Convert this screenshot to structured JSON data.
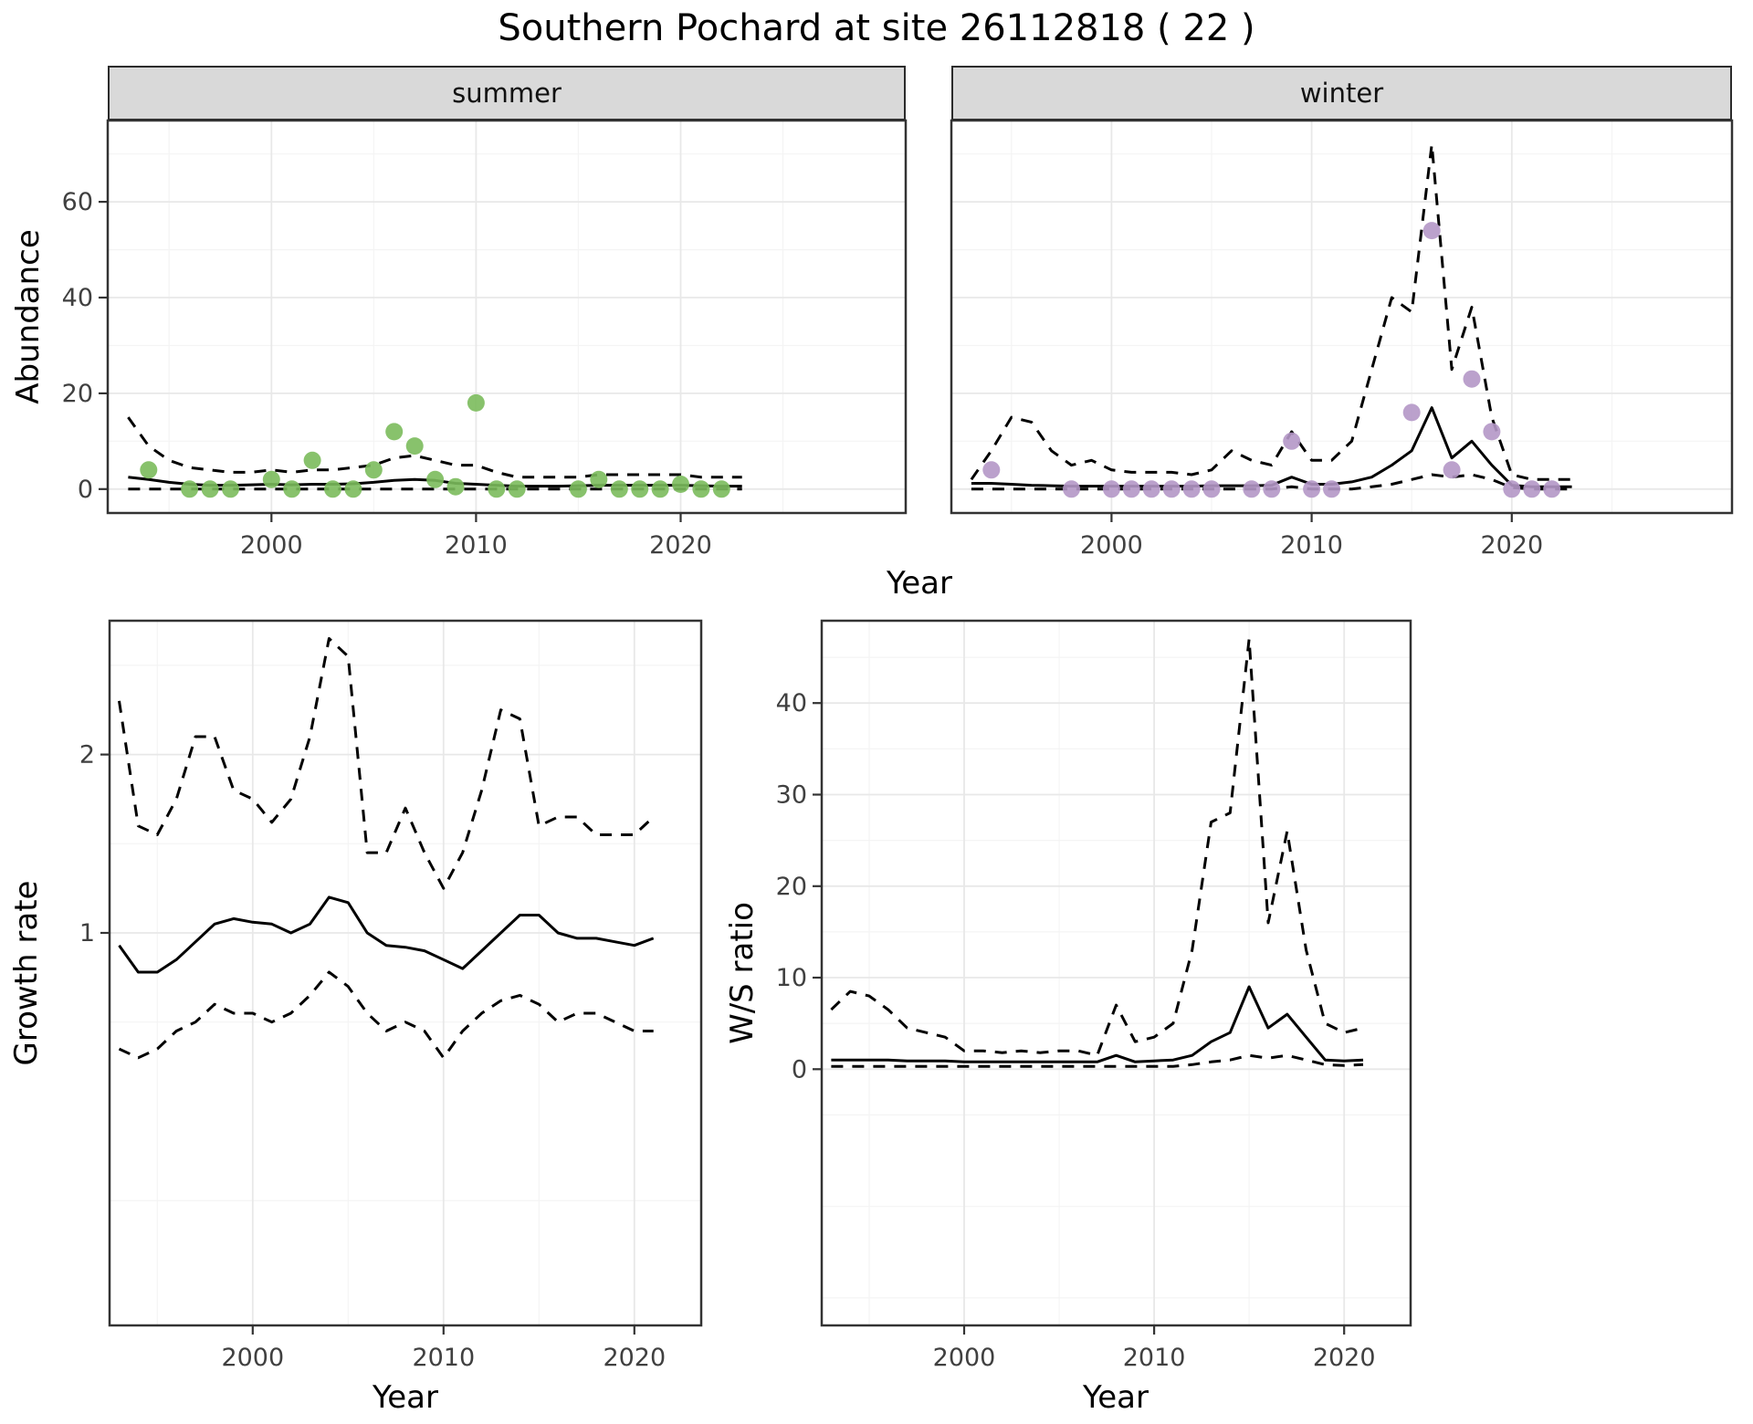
{
  "title": "Southern Pochard at site 26112818 ( 22 )",
  "facets": [
    "summer",
    "winter"
  ],
  "axes": {
    "abundance": "Abundance",
    "year": "Year",
    "growth": "Growth rate",
    "ws": "W/S ratio"
  },
  "theme": {
    "panel_bg": "#ffffff",
    "panel_border": "#333333",
    "grid_major": "#e8e8e8",
    "grid_minor": "#f4f4f4",
    "strip_bg": "#d9d9d9",
    "tick_color": "#333333",
    "line_color": "#000000",
    "point_green": "#7bbb5c",
    "point_purple": "#b497c6"
  },
  "chart_data": [
    {
      "id": "abundance-summer",
      "type": "line",
      "facet": "summer",
      "xlabel": "Year",
      "ylabel": "Abundance",
      "xlim": [
        1992,
        2031
      ],
      "ylim": [
        -5,
        77
      ],
      "xticks": [
        2000,
        2010,
        2020
      ],
      "yticks": [
        0,
        20,
        40,
        60
      ],
      "grid": true,
      "legend": "none",
      "series": [
        {
          "name": "ci-upper",
          "style": "dashed-line",
          "color": "#000000",
          "x": [
            1993,
            1994,
            1995,
            1996,
            1997,
            1998,
            1999,
            2000,
            2001,
            2002,
            2003,
            2004,
            2005,
            2006,
            2007,
            2008,
            2009,
            2010,
            2011,
            2012,
            2013,
            2014,
            2015,
            2016,
            2017,
            2018,
            2019,
            2020,
            2021,
            2022,
            2023
          ],
          "y": [
            15,
            9,
            6,
            4.5,
            4,
            3.5,
            3.5,
            4,
            3.5,
            4,
            4,
            4.5,
            5,
            6.5,
            7,
            6,
            5,
            5,
            3.5,
            2.5,
            2.5,
            2.5,
            2.5,
            3,
            3,
            3,
            3,
            3,
            2.5,
            2.5,
            2.5
          ]
        },
        {
          "name": "ci-lower",
          "style": "dashed-line",
          "color": "#000000",
          "x": [
            1993,
            1994,
            1995,
            1996,
            1997,
            1998,
            1999,
            2000,
            2001,
            2002,
            2003,
            2004,
            2005,
            2006,
            2007,
            2008,
            2009,
            2010,
            2011,
            2012,
            2013,
            2014,
            2015,
            2016,
            2017,
            2018,
            2019,
            2020,
            2021,
            2022,
            2023
          ],
          "y": [
            0,
            0,
            0,
            0,
            0,
            0,
            0,
            0,
            0,
            0,
            0,
            0,
            0,
            0,
            0,
            0,
            0,
            0,
            0,
            0,
            0,
            0,
            0,
            0,
            0,
            0,
            0,
            0,
            0,
            0,
            0
          ]
        },
        {
          "name": "model-fit",
          "style": "solid-line",
          "color": "#000000",
          "x": [
            1993,
            1994,
            1995,
            1996,
            1997,
            1998,
            1999,
            2000,
            2001,
            2002,
            2003,
            2004,
            2005,
            2006,
            2007,
            2008,
            2009,
            2010,
            2011,
            2012,
            2013,
            2014,
            2015,
            2016,
            2017,
            2018,
            2019,
            2020,
            2021,
            2022,
            2023
          ],
          "y": [
            2.5,
            2.0,
            1.4,
            1.0,
            0.8,
            0.8,
            0.9,
            1.0,
            0.9,
            1.0,
            1.0,
            1.1,
            1.4,
            1.8,
            2.0,
            1.8,
            1.2,
            1.0,
            0.8,
            0.6,
            0.6,
            0.6,
            0.7,
            0.8,
            0.8,
            0.8,
            0.8,
            0.8,
            0.7,
            0.6,
            0.6
          ]
        },
        {
          "name": "observed-count",
          "style": "points",
          "color": "#7bbb5c",
          "x": [
            1994,
            1996,
            1997,
            1998,
            2000,
            2001,
            2002,
            2003,
            2004,
            2005,
            2006,
            2007,
            2008,
            2009,
            2010,
            2011,
            2012,
            2015,
            2016,
            2017,
            2018,
            2019,
            2020,
            2021,
            2022
          ],
          "y": [
            4,
            0,
            0,
            0,
            2,
            0,
            6,
            0,
            0,
            4,
            12,
            9,
            2,
            0.5,
            18,
            0,
            0,
            0,
            2,
            0,
            0,
            0,
            1,
            0,
            0
          ]
        }
      ]
    },
    {
      "id": "abundance-winter",
      "type": "line",
      "facet": "winter",
      "xlabel": "Year",
      "ylabel": "Abundance",
      "xlim": [
        1992,
        2031
      ],
      "ylim": [
        -5,
        77
      ],
      "xticks": [
        2000,
        2010,
        2020
      ],
      "yticks": [
        0,
        20,
        40,
        60
      ],
      "grid": true,
      "legend": "none",
      "series": [
        {
          "name": "ci-upper",
          "style": "dashed-line",
          "color": "#000000",
          "x": [
            1993,
            1994,
            1995,
            1996,
            1997,
            1998,
            1999,
            2000,
            2001,
            2002,
            2003,
            2004,
            2005,
            2006,
            2007,
            2008,
            2009,
            2010,
            2011,
            2012,
            2013,
            2014,
            2015,
            2016,
            2017,
            2018,
            2019,
            2020,
            2021,
            2022,
            2023
          ],
          "y": [
            2,
            8,
            15,
            14,
            8,
            5,
            6,
            4,
            3.5,
            3.5,
            3.5,
            3,
            4,
            8,
            6,
            5,
            12,
            6,
            6,
            10,
            25,
            40,
            37,
            72,
            25,
            38,
            15,
            3,
            2,
            2,
            2
          ]
        },
        {
          "name": "ci-lower",
          "style": "dashed-line",
          "color": "#000000",
          "x": [
            1993,
            1994,
            1995,
            1996,
            1997,
            1998,
            1999,
            2000,
            2001,
            2002,
            2003,
            2004,
            2005,
            2006,
            2007,
            2008,
            2009,
            2010,
            2011,
            2012,
            2013,
            2014,
            2015,
            2016,
            2017,
            2018,
            2019,
            2020,
            2021,
            2022,
            2023
          ],
          "y": [
            0,
            0,
            0,
            0,
            0,
            0,
            0,
            0,
            0,
            0,
            0,
            0,
            0,
            0,
            0,
            0,
            0.5,
            0,
            0,
            0,
            0.5,
            1,
            2,
            3,
            2.5,
            3,
            2,
            0.3,
            0,
            0,
            0
          ]
        },
        {
          "name": "model-fit",
          "style": "solid-line",
          "color": "#000000",
          "x": [
            1993,
            1994,
            1995,
            1996,
            1997,
            1998,
            1999,
            2000,
            2001,
            2002,
            2003,
            2004,
            2005,
            2006,
            2007,
            2008,
            2009,
            2010,
            2011,
            2012,
            2013,
            2014,
            2015,
            2016,
            2017,
            2018,
            2019,
            2020,
            2021,
            2022,
            2023
          ],
          "y": [
            1.2,
            1.2,
            1.0,
            0.8,
            0.7,
            0.6,
            0.6,
            0.6,
            0.6,
            0.6,
            0.6,
            0.6,
            0.7,
            0.7,
            0.7,
            0.8,
            2.5,
            1.0,
            1.0,
            1.5,
            2.5,
            5,
            8,
            17,
            6.5,
            10,
            5,
            0.8,
            0.5,
            0.5,
            0.5
          ]
        },
        {
          "name": "observed-count",
          "style": "points",
          "color": "#b497c6",
          "x": [
            1994,
            1998,
            2000,
            2001,
            2002,
            2003,
            2004,
            2005,
            2007,
            2008,
            2009,
            2010,
            2011,
            2015,
            2016,
            2017,
            2018,
            2019,
            2020,
            2021,
            2022
          ],
          "y": [
            4,
            0,
            0,
            0,
            0,
            0,
            0,
            0,
            0,
            0,
            10,
            0,
            0,
            16,
            54,
            4,
            23,
            12,
            0,
            0,
            0
          ]
        }
      ]
    },
    {
      "id": "growth-rate",
      "type": "line",
      "xlabel": "Year",
      "ylabel": "Growth rate",
      "xlim": [
        1992.5,
        2023.5
      ],
      "ylim": [
        -1.2,
        2.75
      ],
      "xticks": [
        2000,
        2010,
        2020
      ],
      "yticks": [
        1,
        2
      ],
      "grid": true,
      "legend": "none",
      "series": [
        {
          "name": "ci-upper",
          "style": "dashed-line",
          "color": "#000000",
          "x": [
            1993,
            1994,
            1995,
            1996,
            1997,
            1998,
            1999,
            2000,
            2001,
            2002,
            2003,
            2004,
            2005,
            2006,
            2007,
            2008,
            2009,
            2010,
            2011,
            2012,
            2013,
            2014,
            2015,
            2016,
            2017,
            2018,
            2019,
            2020,
            2021
          ],
          "y": [
            2.3,
            1.6,
            1.55,
            1.75,
            2.1,
            2.1,
            1.8,
            1.75,
            1.62,
            1.75,
            2.1,
            2.65,
            2.55,
            1.45,
            1.45,
            1.7,
            1.45,
            1.25,
            1.45,
            1.8,
            2.25,
            2.2,
            1.6,
            1.65,
            1.65,
            1.55,
            1.55,
            1.55,
            1.65
          ]
        },
        {
          "name": "ci-lower",
          "style": "dashed-line",
          "color": "#000000",
          "x": [
            1993,
            1994,
            1995,
            1996,
            1997,
            1998,
            1999,
            2000,
            2001,
            2002,
            2003,
            2004,
            2005,
            2006,
            2007,
            2008,
            2009,
            2010,
            2011,
            2012,
            2013,
            2014,
            2015,
            2016,
            2017,
            2018,
            2019,
            2020,
            2021
          ],
          "y": [
            0.35,
            0.3,
            0.35,
            0.45,
            0.5,
            0.6,
            0.55,
            0.55,
            0.5,
            0.55,
            0.65,
            0.78,
            0.7,
            0.55,
            0.45,
            0.5,
            0.45,
            0.3,
            0.45,
            0.55,
            0.62,
            0.65,
            0.6,
            0.5,
            0.55,
            0.55,
            0.5,
            0.45,
            0.45
          ]
        },
        {
          "name": "model-fit",
          "style": "solid-line",
          "color": "#000000",
          "x": [
            1993,
            1994,
            1995,
            1996,
            1997,
            1998,
            1999,
            2000,
            2001,
            2002,
            2003,
            2004,
            2005,
            2006,
            2007,
            2008,
            2009,
            2010,
            2011,
            2012,
            2013,
            2014,
            2015,
            2016,
            2017,
            2018,
            2019,
            2020,
            2021
          ],
          "y": [
            0.93,
            0.78,
            0.78,
            0.85,
            0.95,
            1.05,
            1.08,
            1.06,
            1.05,
            1.0,
            1.05,
            1.2,
            1.17,
            1.0,
            0.93,
            0.92,
            0.9,
            0.85,
            0.8,
            0.9,
            1.0,
            1.1,
            1.1,
            1.0,
            0.97,
            0.97,
            0.95,
            0.93,
            0.97
          ]
        }
      ]
    },
    {
      "id": "ws-ratio",
      "type": "line",
      "xlabel": "Year",
      "ylabel": "W/S ratio",
      "xlim": [
        1992.5,
        2023.5
      ],
      "ylim": [
        -28,
        49
      ],
      "xticks": [
        2000,
        2010,
        2020
      ],
      "yticks": [
        0,
        10,
        20,
        30,
        40
      ],
      "grid": true,
      "legend": "none",
      "series": [
        {
          "name": "ci-upper",
          "style": "dashed-line",
          "color": "#000000",
          "x": [
            1993,
            1994,
            1995,
            1996,
            1997,
            1998,
            1999,
            2000,
            2001,
            2002,
            2003,
            2004,
            2005,
            2006,
            2007,
            2008,
            2009,
            2010,
            2011,
            2012,
            2013,
            2014,
            2015,
            2016,
            2017,
            2018,
            2019,
            2020,
            2021
          ],
          "y": [
            6.5,
            8.5,
            8,
            6.5,
            4.5,
            4,
            3.5,
            2,
            2,
            1.8,
            2,
            1.8,
            2,
            2,
            1.5,
            7,
            3,
            3.5,
            5,
            13,
            27,
            28,
            47,
            16,
            26,
            13,
            5,
            4,
            4.5
          ]
        },
        {
          "name": "ci-lower",
          "style": "dashed-line",
          "color": "#000000",
          "x": [
            1993,
            1994,
            1995,
            1996,
            1997,
            1998,
            1999,
            2000,
            2001,
            2002,
            2003,
            2004,
            2005,
            2006,
            2007,
            2008,
            2009,
            2010,
            2011,
            2012,
            2013,
            2014,
            2015,
            2016,
            2017,
            2018,
            2019,
            2020,
            2021
          ],
          "y": [
            0.3,
            0.3,
            0.3,
            0.3,
            0.3,
            0.3,
            0.3,
            0.3,
            0.3,
            0.3,
            0.3,
            0.3,
            0.3,
            0.3,
            0.3,
            0.3,
            0.3,
            0.3,
            0.3,
            0.5,
            0.8,
            1,
            1.5,
            1.2,
            1.5,
            1,
            0.5,
            0.4,
            0.5
          ]
        },
        {
          "name": "model-fit",
          "style": "solid-line",
          "color": "#000000",
          "x": [
            1993,
            1994,
            1995,
            1996,
            1997,
            1998,
            1999,
            2000,
            2001,
            2002,
            2003,
            2004,
            2005,
            2006,
            2007,
            2008,
            2009,
            2010,
            2011,
            2012,
            2013,
            2014,
            2015,
            2016,
            2017,
            2018,
            2019,
            2020,
            2021
          ],
          "y": [
            1,
            1,
            1,
            1,
            0.9,
            0.9,
            0.9,
            0.8,
            0.8,
            0.8,
            0.8,
            0.8,
            0.8,
            0.8,
            0.8,
            1.5,
            0.8,
            0.9,
            1,
            1.5,
            3,
            4,
            9,
            4.5,
            6,
            3.5,
            1,
            0.9,
            1
          ]
        }
      ]
    }
  ]
}
